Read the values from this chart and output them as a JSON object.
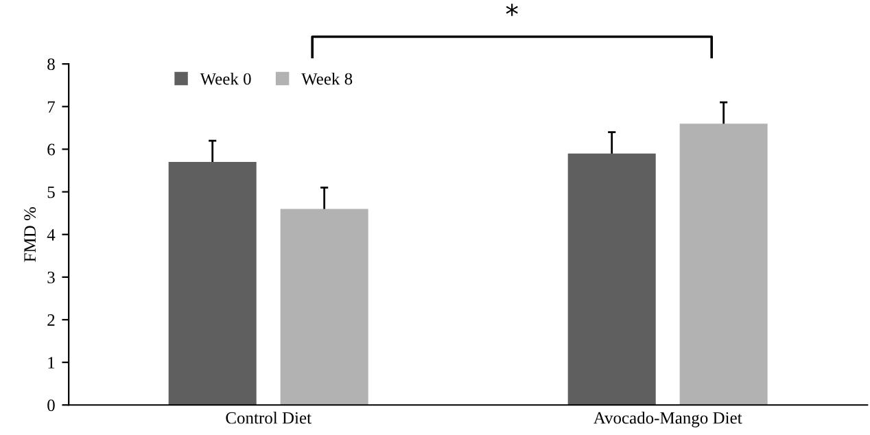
{
  "chart_data": {
    "type": "bar",
    "ylabel": "FMD %",
    "categories": [
      "Control Diet",
      "Avocado-Mango Diet"
    ],
    "series": [
      {
        "name": "Week 0",
        "color": "#5f5f5f",
        "values": [
          5.7,
          5.9
        ],
        "errors": [
          0.5,
          0.5
        ]
      },
      {
        "name": "Week 8",
        "color": "#b2b2b2",
        "values": [
          4.6,
          6.6
        ],
        "errors": [
          0.5,
          0.5
        ]
      }
    ],
    "ylim": [
      0,
      8
    ],
    "yticks": [
      0,
      1,
      2,
      3,
      4,
      5,
      6,
      7,
      8
    ],
    "grid": false,
    "legend": "top left",
    "annotations": [
      "*"
    ]
  }
}
